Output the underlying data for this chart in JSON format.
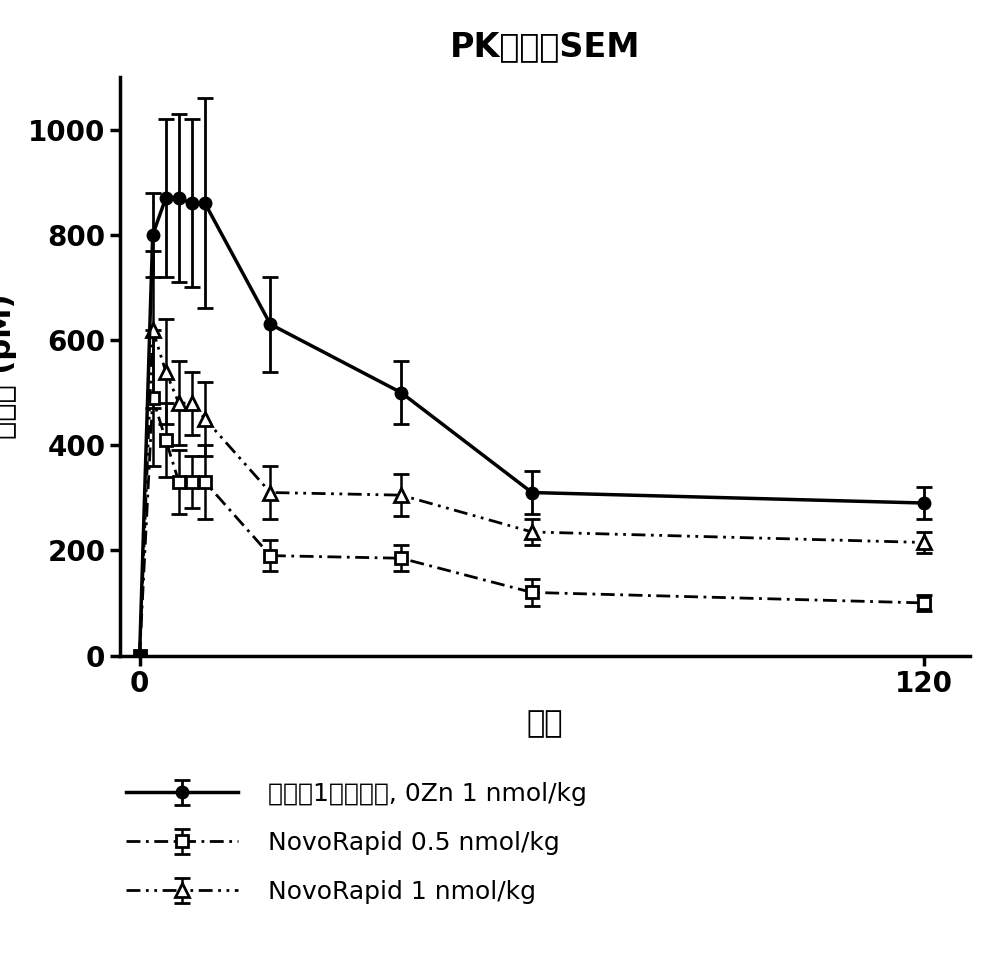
{
  "title": "PK平均值SEM",
  "xlabel": "分钟",
  "ylabel": "胰岛素 (pM)",
  "xlim": [
    -3,
    127
  ],
  "ylim": [
    0,
    1100
  ],
  "yticks": [
    0,
    200,
    400,
    600,
    800,
    1000
  ],
  "xticks": [
    0,
    120
  ],
  "series1_label": "实施例1的胰岛素, 0Zn 1 nmol/kg",
  "series1_x": [
    0,
    2,
    4,
    6,
    8,
    10,
    20,
    40,
    60,
    120
  ],
  "series1_y": [
    0,
    800,
    870,
    870,
    860,
    860,
    630,
    500,
    310,
    290
  ],
  "series1_yerr": [
    0,
    80,
    150,
    160,
    160,
    200,
    90,
    60,
    40,
    30
  ],
  "series2_label": "NovoRapid 0.5 nmol/kg",
  "series2_x": [
    0,
    2,
    4,
    6,
    8,
    10,
    20,
    40,
    60,
    120
  ],
  "series2_y": [
    0,
    490,
    410,
    330,
    330,
    330,
    190,
    185,
    120,
    100
  ],
  "series2_yerr": [
    0,
    130,
    70,
    60,
    50,
    70,
    30,
    25,
    25,
    15
  ],
  "series3_label": "NovoRapid 1 nmol/kg",
  "series3_x": [
    0,
    2,
    4,
    6,
    8,
    10,
    20,
    40,
    60,
    120
  ],
  "series3_y": [
    0,
    620,
    540,
    480,
    480,
    450,
    310,
    305,
    235,
    215
  ],
  "series3_yerr": [
    0,
    150,
    100,
    80,
    60,
    70,
    50,
    40,
    25,
    20
  ],
  "bg_color": "#ffffff",
  "title_fontsize": 24,
  "label_fontsize": 22,
  "tick_fontsize": 20,
  "legend_fontsize": 18
}
